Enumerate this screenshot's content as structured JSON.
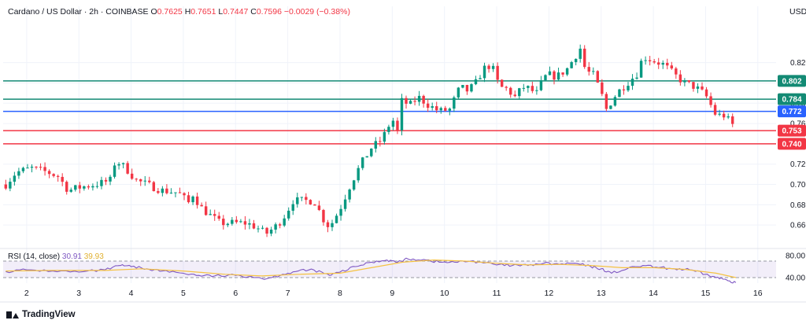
{
  "header": {
    "symbol": "Cardano / US Dollar · 2h · COINBASE",
    "open_label": "O",
    "open": "0.7625",
    "high_label": "H",
    "high": "0.7651",
    "low_label": "L",
    "low": "0.7447",
    "close_label": "C",
    "close": "0.7596",
    "change": "−0.0029 (−0.38%)",
    "currency": "USD"
  },
  "rsi_legend": {
    "label": "RSI (14, close)",
    "rsi": "30.91",
    "ma": "39.93"
  },
  "brand": {
    "name": "TradingView"
  },
  "colors": {
    "up": "#089981",
    "down": "#f23645",
    "support": "#f23645",
    "resistance": "#138a74",
    "pivot": "#2962ff",
    "rsi": "#7e57c2",
    "rsi_ma": "#f5c242"
  },
  "chart_data": [
    {
      "type": "candlestick",
      "ylim": [
        0.64,
        0.86
      ],
      "y_ticks": [
        "0.820",
        "0.800",
        "0.780",
        "0.760",
        "0.740",
        "0.720",
        "0.700",
        "0.680",
        "0.660"
      ],
      "x_ticks": [
        "2",
        "3",
        "4",
        "5",
        "6",
        "7",
        "8",
        "9",
        "10",
        "11",
        "12",
        "13",
        "14",
        "15",
        "16"
      ],
      "xlim": [
        1.55,
        16.35
      ],
      "levels": [
        {
          "value": 0.802,
          "label": "0.802",
          "role": "resistance"
        },
        {
          "value": 0.784,
          "label": "0.784",
          "role": "resistance"
        },
        {
          "value": 0.772,
          "label": "0.772",
          "role": "pivot"
        },
        {
          "value": 0.753,
          "label": "0.753",
          "role": "support"
        },
        {
          "value": 0.74,
          "label": "0.740",
          "role": "support"
        }
      ],
      "anchors": [
        [
          1.6,
          0.7
        ],
        [
          1.8,
          0.712
        ],
        [
          2.1,
          0.716
        ],
        [
          2.4,
          0.712
        ],
        [
          2.6,
          0.708
        ],
        [
          2.8,
          0.694
        ],
        [
          3.0,
          0.697
        ],
        [
          3.2,
          0.699
        ],
        [
          3.4,
          0.701
        ],
        [
          3.6,
          0.704
        ],
        [
          3.7,
          0.724
        ],
        [
          3.9,
          0.716
        ],
        [
          4.1,
          0.704
        ],
        [
          4.3,
          0.7
        ],
        [
          4.6,
          0.694
        ],
        [
          4.9,
          0.692
        ],
        [
          5.1,
          0.682
        ],
        [
          5.2,
          0.692
        ],
        [
          5.3,
          0.679
        ],
        [
          5.5,
          0.67
        ],
        [
          5.7,
          0.662
        ],
        [
          6.0,
          0.662
        ],
        [
          6.2,
          0.662
        ],
        [
          6.4,
          0.658
        ],
        [
          6.5,
          0.654
        ],
        [
          6.6,
          0.652
        ],
        [
          6.8,
          0.66
        ],
        [
          6.95,
          0.67
        ],
        [
          7.1,
          0.684
        ],
        [
          7.3,
          0.684
        ],
        [
          7.5,
          0.684
        ],
        [
          7.6,
          0.674
        ],
        [
          7.7,
          0.664
        ],
        [
          7.8,
          0.658
        ],
        [
          8.0,
          0.676
        ],
        [
          8.2,
          0.7
        ],
        [
          8.4,
          0.72
        ],
        [
          8.6,
          0.736
        ],
        [
          8.8,
          0.744
        ],
        [
          9.0,
          0.765
        ],
        [
          9.1,
          0.752
        ],
        [
          9.2,
          0.788
        ],
        [
          9.3,
          0.776
        ],
        [
          9.5,
          0.786
        ],
        [
          9.7,
          0.778
        ],
        [
          9.9,
          0.772
        ],
        [
          10.1,
          0.774
        ],
        [
          10.3,
          0.796
        ],
        [
          10.45,
          0.792
        ],
        [
          10.6,
          0.8
        ],
        [
          10.75,
          0.814
        ],
        [
          10.9,
          0.818
        ],
        [
          11.05,
          0.796
        ],
        [
          11.2,
          0.794
        ],
        [
          11.35,
          0.786
        ],
        [
          11.5,
          0.796
        ],
        [
          11.65,
          0.794
        ],
        [
          11.75,
          0.788
        ],
        [
          11.9,
          0.805
        ],
        [
          12.0,
          0.808
        ],
        [
          12.15,
          0.806
        ],
        [
          12.35,
          0.814
        ],
        [
          12.5,
          0.826
        ],
        [
          12.6,
          0.834
        ],
        [
          12.7,
          0.812
        ],
        [
          12.85,
          0.808
        ],
        [
          13.0,
          0.79
        ],
        [
          13.1,
          0.774
        ],
        [
          13.3,
          0.79
        ],
        [
          13.5,
          0.8
        ],
        [
          13.7,
          0.81
        ],
        [
          13.8,
          0.826
        ],
        [
          14.0,
          0.822
        ],
        [
          14.2,
          0.818
        ],
        [
          14.4,
          0.808
        ],
        [
          14.6,
          0.8
        ],
        [
          14.8,
          0.796
        ],
        [
          15.0,
          0.788
        ],
        [
          15.2,
          0.768
        ],
        [
          15.35,
          0.768
        ],
        [
          15.5,
          0.76
        ],
        [
          15.58,
          0.759
        ]
      ],
      "last_close": 0.7596
    },
    {
      "type": "line",
      "title": "RSI (14, close)",
      "ylim": [
        30,
        90
      ],
      "y_ticks": [
        "80.00",
        "40.00"
      ],
      "band": [
        40,
        70
      ],
      "series": [
        {
          "name": "RSI",
          "points": [
            [
              1.6,
              51
            ],
            [
              2.0,
              54
            ],
            [
              2.5,
              52
            ],
            [
              3.0,
              50
            ],
            [
              3.5,
              54
            ],
            [
              3.8,
              62
            ],
            [
              4.0,
              60
            ],
            [
              4.3,
              56
            ],
            [
              4.6,
              52
            ],
            [
              5.0,
              48
            ],
            [
              5.3,
              44
            ],
            [
              5.6,
              43
            ],
            [
              6.0,
              44
            ],
            [
              6.3,
              42
            ],
            [
              6.6,
              38
            ],
            [
              6.9,
              46
            ],
            [
              7.2,
              52
            ],
            [
              7.5,
              54
            ],
            [
              7.8,
              44
            ],
            [
              8.0,
              50
            ],
            [
              8.3,
              60
            ],
            [
              8.6,
              68
            ],
            [
              8.9,
              72
            ],
            [
              9.1,
              68
            ],
            [
              9.3,
              74
            ],
            [
              9.6,
              73
            ],
            [
              9.9,
              68
            ],
            [
              10.2,
              68
            ],
            [
              10.5,
              70
            ],
            [
              10.8,
              67
            ],
            [
              11.0,
              63
            ],
            [
              11.3,
              62
            ],
            [
              11.6,
              62
            ],
            [
              11.9,
              66
            ],
            [
              12.2,
              64
            ],
            [
              12.5,
              66
            ],
            [
              12.8,
              60
            ],
            [
              13.0,
              56
            ],
            [
              13.2,
              48
            ],
            [
              13.5,
              56
            ],
            [
              13.8,
              62
            ],
            [
              14.1,
              58
            ],
            [
              14.4,
              56
            ],
            [
              14.7,
              54
            ],
            [
              15.0,
              46
            ],
            [
              15.2,
              40
            ],
            [
              15.4,
              36
            ],
            [
              15.58,
              31
            ]
          ]
        },
        {
          "name": "MA",
          "points": [
            [
              1.6,
              52
            ],
            [
              2.5,
              53
            ],
            [
              3.5,
              53
            ],
            [
              4.2,
              56
            ],
            [
              5.0,
              52
            ],
            [
              5.8,
              46
            ],
            [
              6.5,
              43
            ],
            [
              7.2,
              46
            ],
            [
              8.0,
              48
            ],
            [
              8.6,
              58
            ],
            [
              9.2,
              68
            ],
            [
              9.8,
              72
            ],
            [
              10.4,
              70
            ],
            [
              11.0,
              66
            ],
            [
              11.6,
              63
            ],
            [
              12.2,
              64
            ],
            [
              12.8,
              62
            ],
            [
              13.4,
              58
            ],
            [
              14.0,
              58
            ],
            [
              14.6,
              55
            ],
            [
              15.2,
              48
            ],
            [
              15.58,
              40
            ]
          ]
        }
      ]
    }
  ]
}
